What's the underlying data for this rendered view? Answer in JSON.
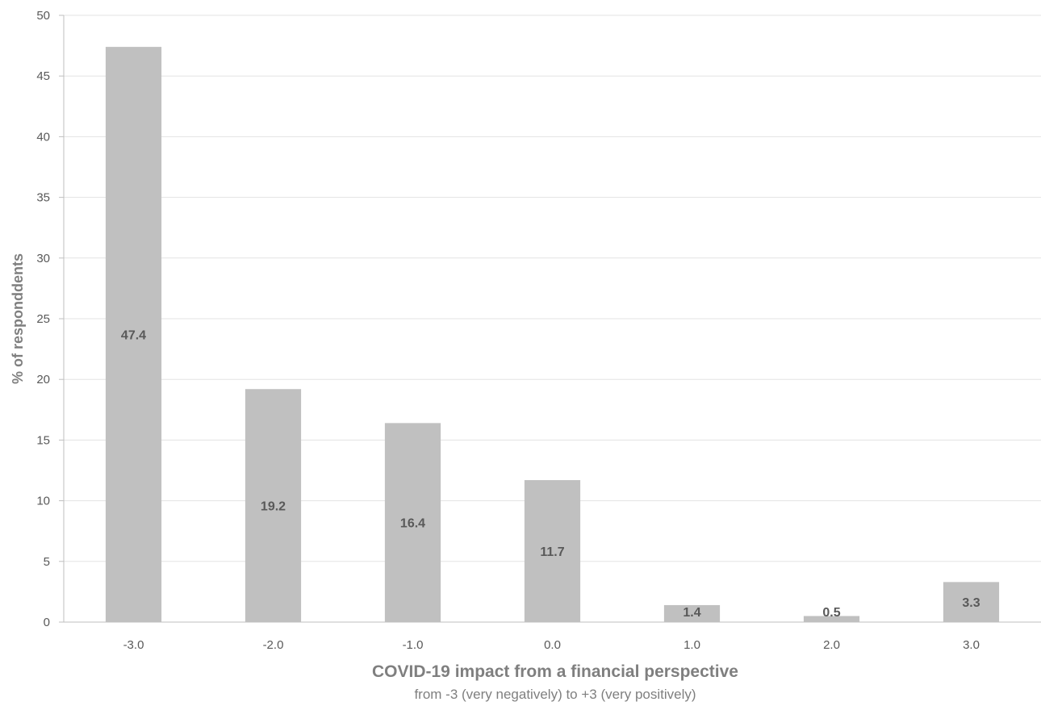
{
  "chart_data": {
    "type": "bar",
    "title": "",
    "xlabel": "COVID-19 impact from a financial perspective",
    "xlabel_sub": "from -3 (very negatively) to +3 (very positively)",
    "ylabel": "% of responddents",
    "categories": [
      "-3.0",
      "-2.0",
      "-1.0",
      "0.0",
      "1.0",
      "2.0",
      "3.0"
    ],
    "values": [
      47.4,
      19.2,
      16.4,
      11.7,
      1.4,
      0.5,
      3.3
    ],
    "data_labels": [
      "47.4",
      "19.2",
      "16.4",
      "11.7",
      "1.4",
      "0.5",
      "3.3"
    ],
    "ylim": [
      0,
      50
    ],
    "yticks": [
      0,
      5,
      10,
      15,
      20,
      25,
      30,
      35,
      40,
      45,
      50
    ],
    "grid": true,
    "legend": "none",
    "colors": {
      "bar": "#c0c0c0",
      "grid": "#e3e3e3",
      "axis": "#bfbfbf",
      "tick_text": "#595959",
      "data_label_text": "#595959",
      "title_text": "#7f7f7f"
    }
  }
}
